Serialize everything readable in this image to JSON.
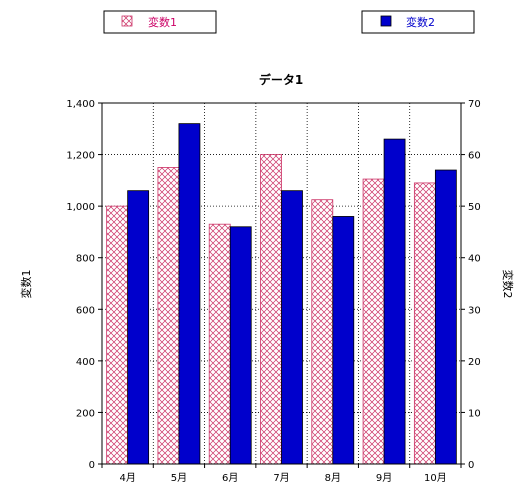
{
  "chart_data": {
    "type": "bar",
    "title": "データ1",
    "categories": [
      "4月",
      "5月",
      "6月",
      "7月",
      "8月",
      "9月",
      "10月"
    ],
    "series": [
      {
        "name": "変数1",
        "axis": "left",
        "values": [
          1000,
          1150,
          930,
          1200,
          1025,
          1105,
          1090
        ]
      },
      {
        "name": "変数2",
        "axis": "right",
        "values": [
          53,
          66,
          46,
          53,
          48,
          63,
          57
        ]
      }
    ],
    "ylabel": "変数1",
    "ylabel_right": "変数2",
    "ylim": [
      0,
      1400
    ],
    "ylim_right": [
      0,
      70
    ],
    "yticks": [
      "0",
      "200",
      "400",
      "600",
      "800",
      "1,000",
      "1,200",
      "1,400"
    ],
    "yticks_right": [
      "0",
      "10",
      "20",
      "30",
      "40",
      "50",
      "60",
      "70"
    ],
    "grid": true,
    "legend_placement": "top",
    "colors": {
      "series1_hatch": "#cc3366",
      "series1_bg": "#ffffff",
      "series2_fill": "#0000cc",
      "legend_text1": "#cc0066",
      "legend_text2": "#0000cc"
    }
  }
}
